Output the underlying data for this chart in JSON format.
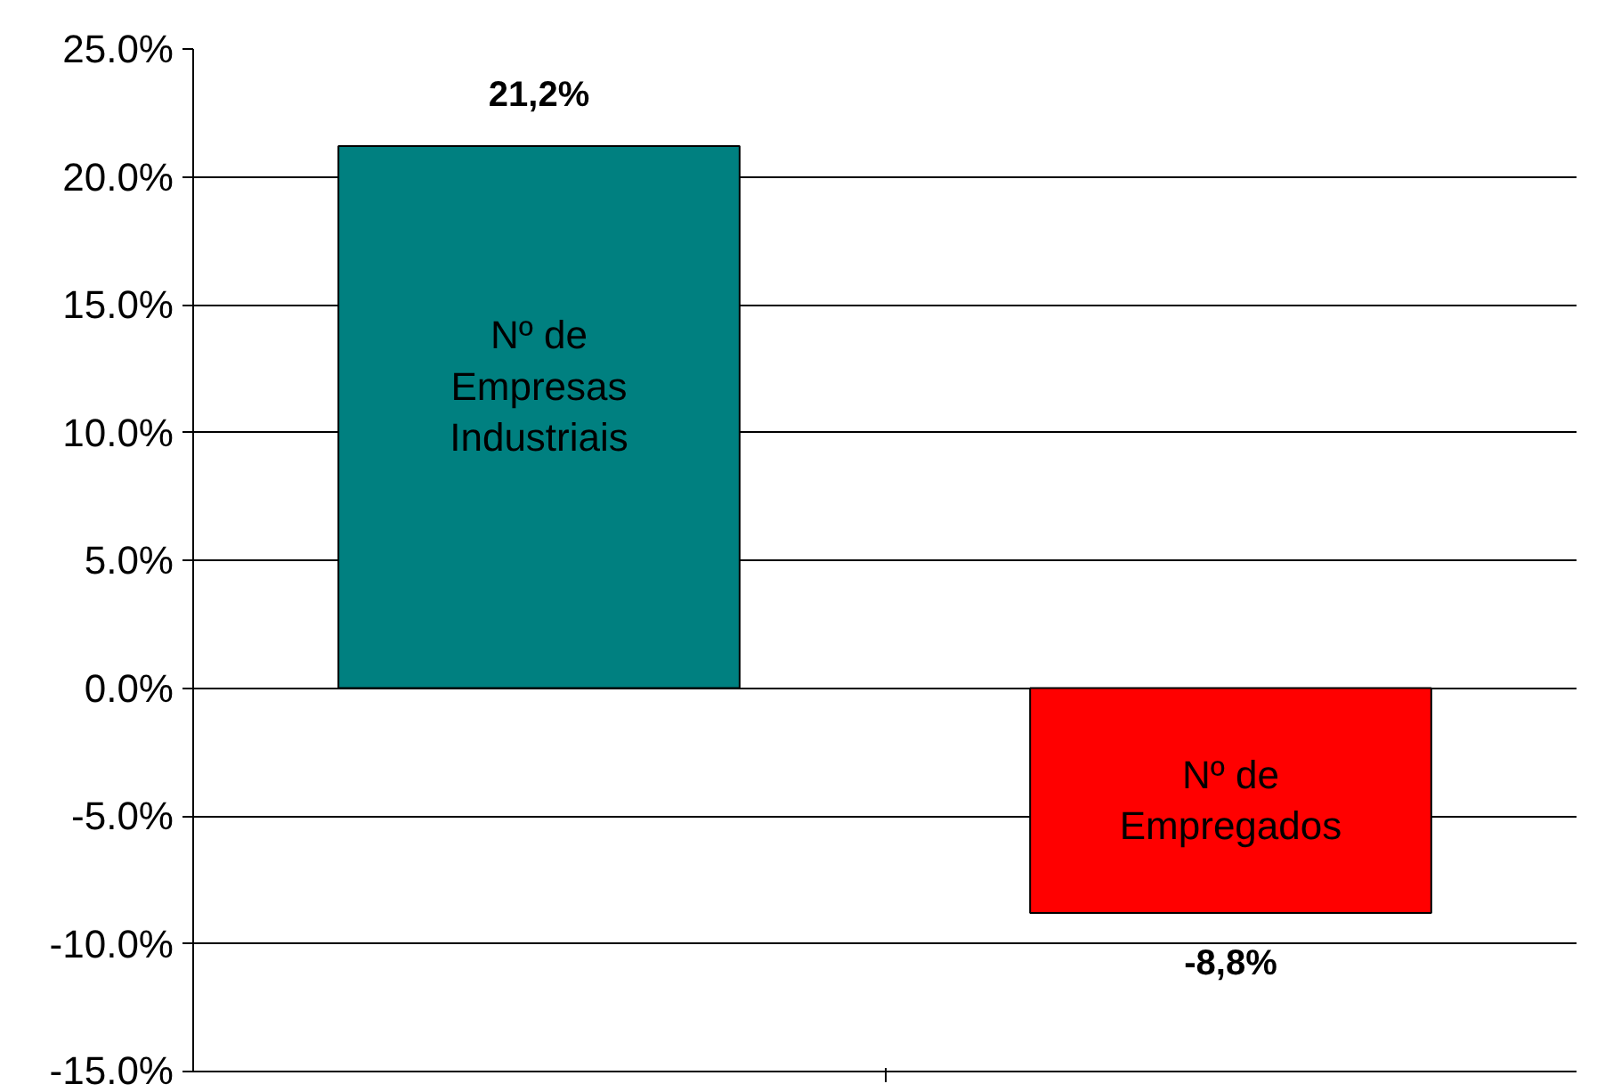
{
  "chart_data": {
    "type": "bar",
    "categories": [
      "Nº de Empresas Industriais",
      "Nº de Empregados"
    ],
    "values": [
      21.2,
      -8.8
    ],
    "colors": [
      "#008080",
      "#ff0000"
    ],
    "value_labels": [
      "21,2%",
      "-8,8%"
    ],
    "ylim": [
      -15,
      25
    ],
    "yticks": [
      {
        "value": -15,
        "label": "-15.0%"
      },
      {
        "value": -10,
        "label": "-10.0%"
      },
      {
        "value": -5,
        "label": "-5.0%"
      },
      {
        "value": 0,
        "label": "0.0%"
      },
      {
        "value": 5,
        "label": "5.0%"
      },
      {
        "value": 10,
        "label": "10.0%"
      },
      {
        "value": 15,
        "label": "15.0%"
      },
      {
        "value": 20,
        "label": "20.0%"
      },
      {
        "value": 25,
        "label": "25.0%"
      }
    ],
    "grid": "y",
    "tick_labels": "y"
  }
}
